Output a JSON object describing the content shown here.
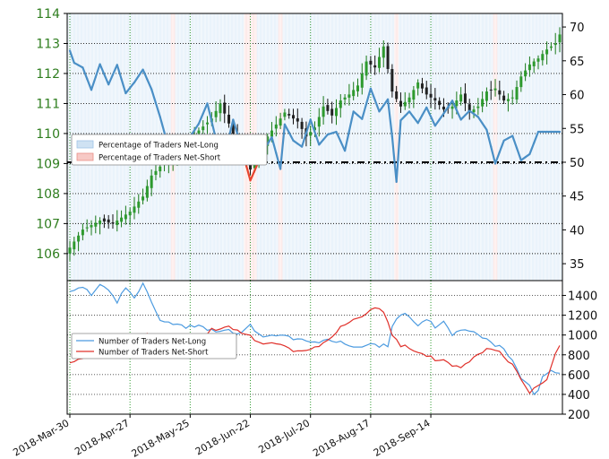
{
  "chart_data": [
    {
      "type": "candlestick+line",
      "title": "",
      "x_dates": [
        "2018-Mar-30",
        "2018-Apr-27",
        "2018-May-25",
        "2018-Jun-22",
        "2018-Jul-20",
        "2018-Aug-17",
        "2018-Sep-14"
      ],
      "left_axis": {
        "ylim": [
          105.1,
          114.0
        ],
        "ticks": [
          106,
          107,
          108,
          109,
          110,
          111,
          112,
          113,
          114
        ]
      },
      "right_axis": {
        "ylim": [
          32.5,
          72.0
        ],
        "ticks": [
          35,
          40,
          45,
          50,
          55,
          60,
          65,
          70
        ],
        "reference_line": 50
      },
      "legend": {
        "placement": "center-left",
        "items": [
          "Percentage of Traders Net-Long",
          "Percentage of Traders Net-Short"
        ]
      },
      "candle_close_anchors": [
        [
          0,
          106.2
        ],
        [
          3,
          106.8
        ],
        [
          7,
          107.1
        ],
        [
          10,
          107.0
        ],
        [
          14,
          107.4
        ],
        [
          17,
          107.9
        ],
        [
          19,
          108.6
        ],
        [
          21,
          108.9
        ],
        [
          24,
          109.2
        ],
        [
          27,
          109.6
        ],
        [
          30,
          110.1
        ],
        [
          33,
          110.5
        ],
        [
          35,
          111.0
        ],
        [
          38,
          110.0
        ],
        [
          40,
          109.2
        ],
        [
          42,
          108.8
        ],
        [
          44,
          109.3
        ],
        [
          46,
          109.9
        ],
        [
          48,
          110.3
        ],
        [
          50,
          110.7
        ],
        [
          53,
          110.4
        ],
        [
          55,
          109.9
        ],
        [
          57,
          110.2
        ],
        [
          59,
          110.9
        ],
        [
          61,
          110.6
        ],
        [
          63,
          111.1
        ],
        [
          65,
          111.3
        ],
        [
          67,
          111.6
        ],
        [
          69,
          112.4
        ],
        [
          71,
          112.2
        ],
        [
          73,
          112.9
        ],
        [
          75,
          111.4
        ],
        [
          77,
          110.9
        ],
        [
          79,
          111.2
        ],
        [
          81,
          111.7
        ],
        [
          83,
          111.3
        ],
        [
          85,
          111.1
        ],
        [
          87,
          110.8
        ],
        [
          89,
          110.9
        ],
        [
          91,
          111.3
        ],
        [
          93,
          110.7
        ],
        [
          95,
          110.9
        ],
        [
          97,
          111.4
        ],
        [
          99,
          111.5
        ],
        [
          101,
          111.1
        ],
        [
          103,
          111.2
        ],
        [
          105,
          111.9
        ],
        [
          107,
          112.3
        ],
        [
          109,
          112.5
        ],
        [
          111,
          112.8
        ],
        [
          113,
          113.0
        ],
        [
          114,
          113.3
        ]
      ],
      "pct_net_long_anchors": [
        [
          0,
          66.5
        ],
        [
          1,
          64.7
        ],
        [
          3,
          64.0
        ],
        [
          5,
          60.7
        ],
        [
          7,
          64.5
        ],
        [
          9,
          61.5
        ],
        [
          11,
          64.4
        ],
        [
          13,
          60.2
        ],
        [
          15,
          61.8
        ],
        [
          17,
          63.7
        ],
        [
          19,
          60.8
        ],
        [
          21,
          56.7
        ],
        [
          24,
          49.8
        ],
        [
          27,
          52.8
        ],
        [
          30,
          55.7
        ],
        [
          32,
          58.7
        ],
        [
          34,
          53.4
        ],
        [
          36,
          50.9
        ],
        [
          38,
          56.3
        ],
        [
          40,
          52.0
        ],
        [
          42,
          47.3
        ],
        [
          45,
          51.7
        ],
        [
          47,
          53.7
        ],
        [
          49,
          49.0
        ],
        [
          50,
          55.6
        ],
        [
          52,
          53.2
        ],
        [
          54,
          52.3
        ],
        [
          56,
          56.3
        ],
        [
          58,
          52.6
        ],
        [
          60,
          54.1
        ],
        [
          62,
          54.5
        ],
        [
          64,
          51.7
        ],
        [
          66,
          57.5
        ],
        [
          68,
          56.4
        ],
        [
          70,
          60.9
        ],
        [
          72,
          57.5
        ],
        [
          74,
          59.3
        ],
        [
          75,
          53.8
        ],
        [
          76,
          47.1
        ],
        [
          77,
          56.2
        ],
        [
          79,
          57.5
        ],
        [
          81,
          55.8
        ],
        [
          83,
          58.1
        ],
        [
          85,
          55.4
        ],
        [
          87,
          57.2
        ],
        [
          89,
          59.1
        ],
        [
          91,
          56.3
        ],
        [
          93,
          57.6
        ],
        [
          95,
          56.7
        ],
        [
          97,
          54.8
        ],
        [
          99,
          49.8
        ],
        [
          101,
          53.2
        ],
        [
          103,
          53.9
        ],
        [
          105,
          50.3
        ],
        [
          107,
          51.2
        ],
        [
          109,
          54.5
        ]
      ],
      "counts_panel": {
        "ylim": [
          200,
          1550
        ],
        "ticks": [
          200,
          400,
          600,
          800,
          1000,
          1200,
          1400
        ],
        "legend": {
          "placement": "center-left",
          "items": [
            "Number of Traders Net-Long",
            "Number of Traders Net-Short"
          ]
        },
        "series": [
          {
            "name": "Number of Traders Net-Long",
            "color": "#4c9be0",
            "anchors": [
              [
                0,
                1420
              ],
              [
                3,
                1500
              ],
              [
                5,
                1380
              ],
              [
                7,
                1510
              ],
              [
                9,
                1450
              ],
              [
                11,
                1340
              ],
              [
                13,
                1470
              ],
              [
                15,
                1390
              ],
              [
                17,
                1520
              ],
              [
                19,
                1340
              ],
              [
                21,
                1130
              ],
              [
                24,
                1110
              ],
              [
                27,
                1070
              ],
              [
                30,
                1100
              ],
              [
                33,
                1040
              ],
              [
                36,
                1060
              ],
              [
                39,
                1000
              ],
              [
                42,
                1090
              ],
              [
                45,
                990
              ],
              [
                48,
                1010
              ],
              [
                51,
                980
              ],
              [
                54,
                950
              ],
              [
                57,
                930
              ],
              [
                60,
                960
              ],
              [
                63,
                920
              ],
              [
                66,
                880
              ],
              [
                69,
                900
              ],
              [
                72,
                890
              ],
              [
                74,
                900
              ],
              [
                75,
                1100
              ],
              [
                77,
                1220
              ],
              [
                79,
                1190
              ],
              [
                81,
                1090
              ],
              [
                83,
                1160
              ],
              [
                85,
                1090
              ],
              [
                87,
                1120
              ],
              [
                89,
                1010
              ],
              [
                91,
                1060
              ],
              [
                93,
                1030
              ],
              [
                95,
                1000
              ],
              [
                97,
                970
              ],
              [
                99,
                900
              ],
              [
                101,
                870
              ],
              [
                103,
                740
              ],
              [
                105,
                560
              ],
              [
                107,
                500
              ],
              [
                108,
                390
              ],
              [
                109,
                440
              ],
              [
                110,
                590
              ],
              [
                112,
                650
              ],
              [
                114,
                620
              ]
            ]
          },
          {
            "name": "Number of Traders Net-Short",
            "color": "#e0302a",
            "anchors": [
              [
                0,
                700
              ],
              [
                3,
                780
              ],
              [
                6,
                890
              ],
              [
                9,
                800
              ],
              [
                12,
                940
              ],
              [
                15,
                920
              ],
              [
                18,
                1010
              ],
              [
                21,
                900
              ],
              [
                24,
                880
              ],
              [
                27,
                940
              ],
              [
                30,
                970
              ],
              [
                33,
                1050
              ],
              [
                36,
                1090
              ],
              [
                39,
                1040
              ],
              [
                42,
                980
              ],
              [
                45,
                920
              ],
              [
                48,
                930
              ],
              [
                51,
                860
              ],
              [
                54,
                830
              ],
              [
                57,
                880
              ],
              [
                60,
                950
              ],
              [
                63,
                1070
              ],
              [
                66,
                1160
              ],
              [
                69,
                1220
              ],
              [
                72,
                1280
              ],
              [
                74,
                1150
              ],
              [
                75,
                1010
              ],
              [
                77,
                900
              ],
              [
                79,
                870
              ],
              [
                81,
                820
              ],
              [
                83,
                790
              ],
              [
                85,
                760
              ],
              [
                87,
                730
              ],
              [
                89,
                700
              ],
              [
                91,
                680
              ],
              [
                93,
                720
              ],
              [
                95,
                800
              ],
              [
                97,
                870
              ],
              [
                99,
                860
              ],
              [
                101,
                790
              ],
              [
                103,
                700
              ],
              [
                105,
                550
              ],
              [
                107,
                420
              ],
              [
                109,
                490
              ],
              [
                111,
                560
              ],
              [
                112,
                690
              ],
              [
                113,
                830
              ],
              [
                114,
                900
              ]
            ]
          }
        ]
      }
    }
  ]
}
